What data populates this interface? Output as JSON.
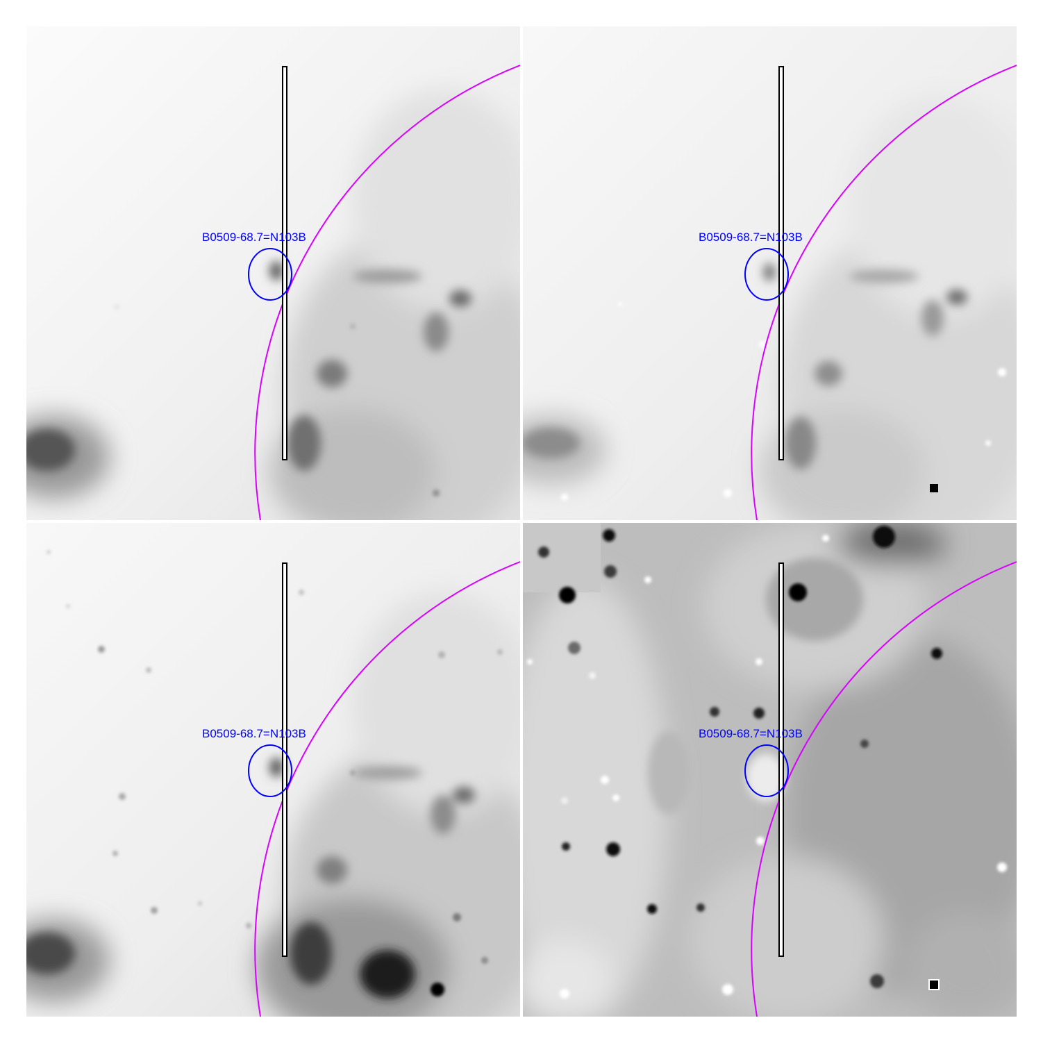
{
  "figure": {
    "background": "#ffffff",
    "panel_count": 4
  },
  "region": {
    "label": "B0509-68.7=N103B",
    "label_color": "#0000ff",
    "ellipse_color": "#0000ff",
    "shell_arc_color": "#d800ff",
    "slit_color": "#000000",
    "slit_fill": "#ffffff"
  },
  "panels": [
    {
      "name": "top-left",
      "icon": "astronomical-image-smooth-nebula",
      "stretch": "inverted-grayscale"
    },
    {
      "name": "top-right",
      "icon": "astronomical-image-smooth-nebula-with-residual-pixels",
      "stretch": "inverted-grayscale"
    },
    {
      "name": "bottom-left",
      "icon": "astronomical-image-star-field-nebula",
      "stretch": "inverted-grayscale"
    },
    {
      "name": "bottom-right",
      "icon": "astronomical-image-difference-map",
      "stretch": "mid-gray-residual"
    }
  ]
}
